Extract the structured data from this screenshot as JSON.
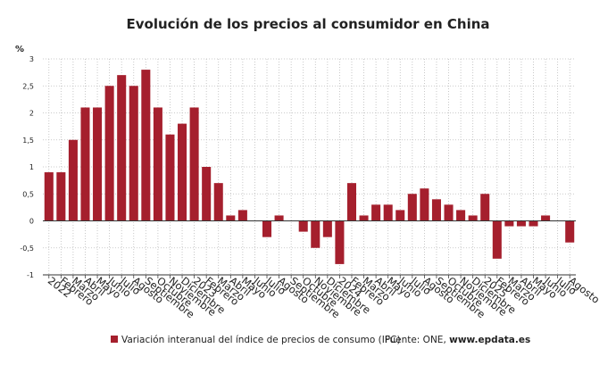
{
  "chart_data": {
    "type": "bar",
    "title": "Evolución de los precios al consumidor en China",
    "y_unit": "%",
    "categories": [
      "2022",
      "Febrero",
      "Marzo",
      "Abril",
      "Mayo",
      "Junio",
      "Julio",
      "Agosto",
      "Septiembre",
      "Octubre",
      "Noviembre",
      "Diciembre",
      "2023",
      "Febrero",
      "Marzo",
      "Abril",
      "Mayo",
      "Junio",
      "Julio",
      "Agosto",
      "Septiembre",
      "Octubre",
      "Noviembre",
      "Diciembre",
      "2024",
      "Febrero",
      "Marzo",
      "Abril",
      "Mayo",
      "Junio",
      "Julio",
      "Agosto",
      "Septiembre",
      "Octubre",
      "Noviembre",
      "Diciembre",
      "2025",
      "Febrero",
      "Marzo",
      "Abril",
      "Mayo",
      "Junio",
      "Julio",
      "Agosto"
    ],
    "series": [
      {
        "name": "Variación interanual del índice de precios de consumo (IPC)",
        "color": "#a51f2d",
        "values": [
          0.9,
          0.9,
          1.5,
          2.1,
          2.1,
          2.5,
          2.7,
          2.5,
          2.8,
          2.1,
          1.6,
          1.8,
          2.1,
          1.0,
          0.7,
          0.1,
          0.2,
          0.0,
          -0.3,
          0.1,
          0.0,
          -0.2,
          -0.5,
          -0.3,
          -0.8,
          0.7,
          0.1,
          0.3,
          0.3,
          0.2,
          0.5,
          0.6,
          0.4,
          0.3,
          0.2,
          0.1,
          0.5,
          -0.7,
          -0.1,
          -0.1,
          -0.1,
          0.1,
          0.0,
          -0.4
        ]
      }
    ],
    "ylim": [
      -1,
      3
    ],
    "yticks": [
      -1,
      {
        "value": -0.5,
        "label": "-0,5"
      },
      0,
      {
        "value": 0.5,
        "label": "0,5"
      },
      1,
      {
        "value": 1.5,
        "label": "1,5"
      },
      2,
      {
        "value": 2.5,
        "label": "2,5"
      },
      3
    ],
    "grid": true,
    "source_prefix": "Fuente: ONE,",
    "source_site": "www.epdata.es"
  }
}
